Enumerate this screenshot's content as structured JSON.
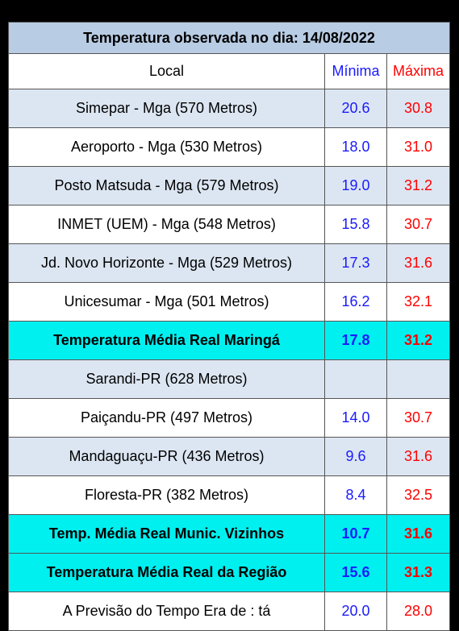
{
  "table": {
    "title": "Temperatura observada no dia: 14/08/2022",
    "header": [
      "Local",
      "Mínima",
      "Máxima"
    ],
    "rows": [
      {
        "cells": [
          "Simepar - Mga  (570 Metros)",
          "20.6",
          "30.8"
        ],
        "style": "shaded"
      },
      {
        "cells": [
          "Aeroporto - Mga (530 Metros)",
          "18.0",
          "31.0"
        ],
        "style": "plain"
      },
      {
        "cells": [
          "Posto Matsuda - Mga (579 Metros)",
          "19.0",
          "31.2"
        ],
        "style": "shaded"
      },
      {
        "cells": [
          "INMET (UEM) - Mga  (548 Metros)",
          "15.8",
          "30.7"
        ],
        "style": "plain"
      },
      {
        "cells": [
          "Jd. Novo Horizonte - Mga (529 Metros)",
          "17.3",
          "31.6"
        ],
        "style": "shaded"
      },
      {
        "cells": [
          "Unicesumar - Mga  (501 Metros)",
          "16.2",
          "32.1"
        ],
        "style": "plain"
      },
      {
        "cells": [
          "Temperatura Média Real Maringá",
          "17.8",
          "31.2"
        ],
        "style": "highlight"
      },
      {
        "cells": [
          "Sarandi-PR  (628 Metros)",
          null,
          null
        ],
        "style": "shaded"
      },
      {
        "cells": [
          "Paiçandu-PR (497 Metros)",
          "14.0",
          "30.7"
        ],
        "style": "plain"
      },
      {
        "cells": [
          "Mandaguaçu-PR (436 Metros)",
          "9.6",
          "31.6"
        ],
        "style": "shaded"
      },
      {
        "cells": [
          "Floresta-PR (382 Metros)",
          "8.4",
          "32.5"
        ],
        "style": "plain"
      },
      {
        "cells": [
          "Temp. Média Real Munic. Vizinhos",
          "10.7",
          "31.6"
        ],
        "style": "highlight"
      },
      {
        "cells": [
          "Temperatura Média Real da Região",
          "15.6",
          "31.3"
        ],
        "style": "highlight"
      },
      {
        "cells": [
          "A Previsão do Tempo Era de : tá",
          "20.0",
          "28.0"
        ],
        "style": "plain"
      }
    ]
  }
}
